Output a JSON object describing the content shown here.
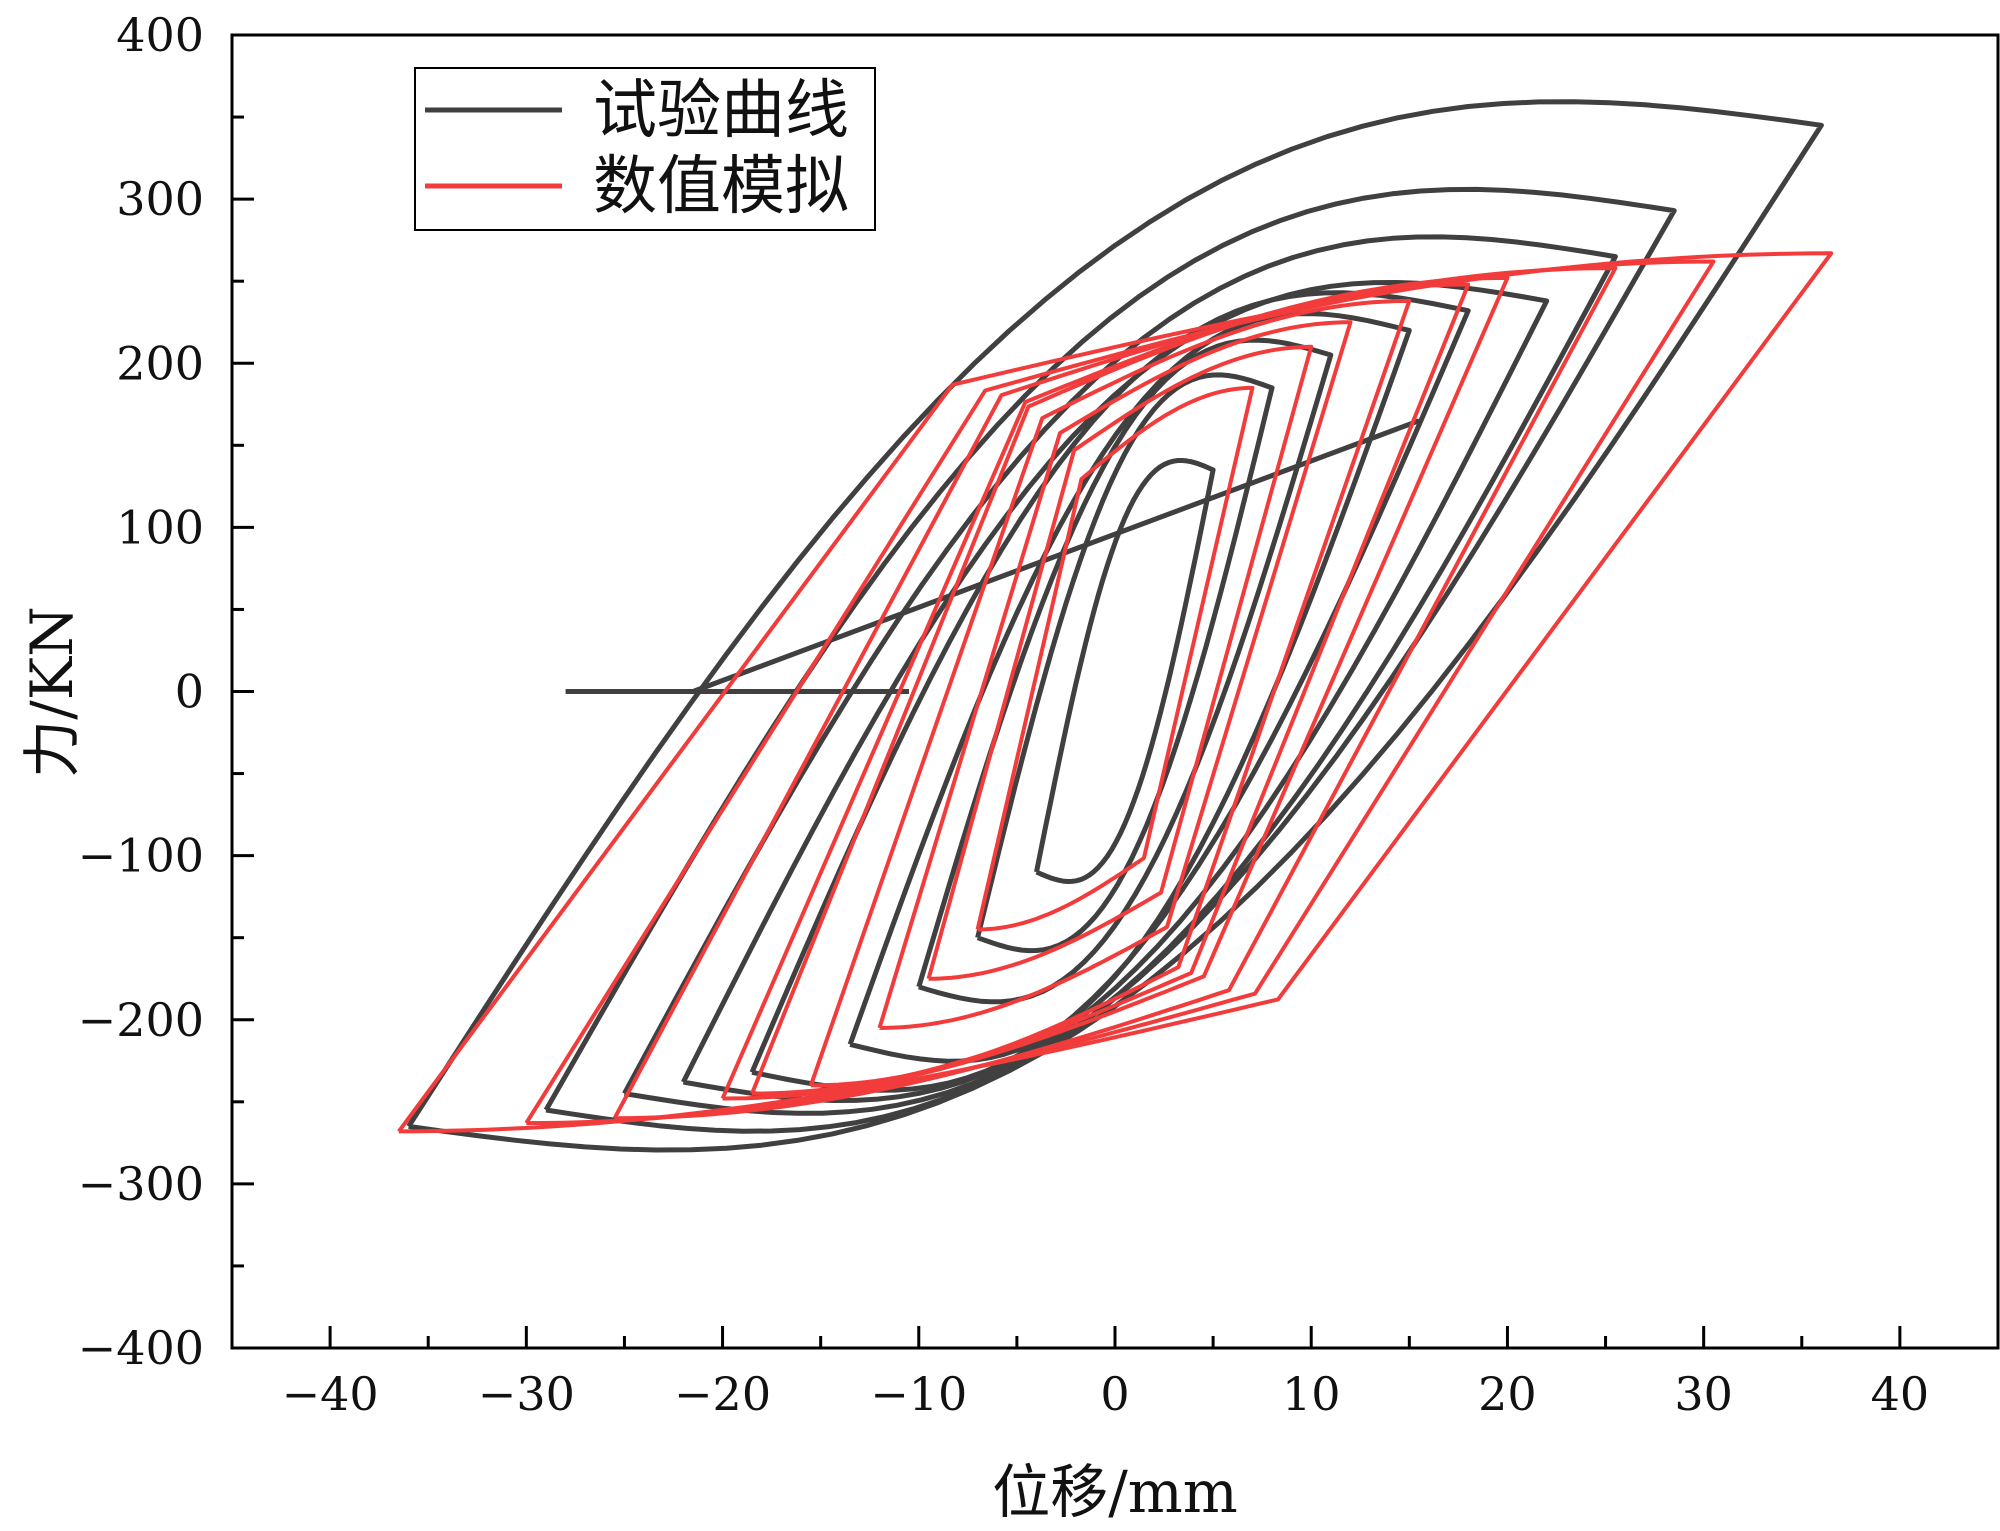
{
  "chart_data": {
    "type": "line",
    "title": "",
    "xlabel": "位移/mm",
    "ylabel": "力/KN",
    "xlim": [
      -45,
      45
    ],
    "ylim": [
      -400,
      400
    ],
    "xticks": [
      -40,
      -30,
      -20,
      -10,
      0,
      10,
      20,
      30,
      40
    ],
    "xtick_labels": [
      "−40",
      "−30",
      "−20",
      "−10",
      "0",
      "10",
      "20",
      "30",
      "40"
    ],
    "yticks": [
      -400,
      -300,
      -200,
      -100,
      0,
      100,
      200,
      300,
      400
    ],
    "ytick_labels": [
      "−400",
      "−300",
      "−200",
      "−100",
      "0",
      "100",
      "200",
      "300",
      "400"
    ],
    "legend": {
      "position": "top-left",
      "entries": [
        "试验曲线",
        "数值模拟"
      ]
    },
    "colors": {
      "test": "#404040",
      "sim": "#f23c3c",
      "axis": "#000000"
    },
    "series": [
      {
        "name": "试验曲线",
        "color": "#404040",
        "loops": [
          {
            "type": "line",
            "points": [
              [
                -28,
                0
              ],
              [
                -10.5,
                0
              ]
            ]
          },
          {
            "type": "line",
            "points": [
              [
                -21.5,
                0
              ],
              [
                15.5,
                165
              ]
            ]
          },
          {
            "type": "loop",
            "d_pos": 5,
            "f_pos": 135,
            "d_neg": -4,
            "f_neg": -110
          },
          {
            "type": "loop",
            "d_pos": 8,
            "f_pos": 185,
            "d_neg": -7,
            "f_neg": -150
          },
          {
            "type": "loop",
            "d_pos": 11,
            "f_pos": 205,
            "d_neg": -10,
            "f_neg": -180
          },
          {
            "type": "loop",
            "d_pos": 15,
            "f_pos": 220,
            "d_neg": -13.5,
            "f_neg": -215
          },
          {
            "type": "loop",
            "d_pos": 18,
            "f_pos": 232,
            "d_neg": -18.5,
            "f_neg": -232
          },
          {
            "type": "loop",
            "d_pos": 22,
            "f_pos": 238,
            "d_neg": -22,
            "f_neg": -238
          },
          {
            "type": "loop",
            "d_pos": 25.5,
            "f_pos": 265,
            "d_neg": -25,
            "f_neg": -245
          },
          {
            "type": "loop",
            "d_pos": 28.5,
            "f_pos": 293,
            "d_neg": -29,
            "f_neg": -255
          },
          {
            "type": "loop",
            "d_pos": 36,
            "f_pos": 345,
            "d_neg": -36,
            "f_neg": -265
          }
        ]
      },
      {
        "name": "数值模拟",
        "color": "#f23c3c",
        "loops": [
          {
            "type": "loop",
            "d_pos": 7,
            "f_pos": 185,
            "d_neg": -7,
            "f_neg": -145
          },
          {
            "type": "loop",
            "d_pos": 10,
            "f_pos": 210,
            "d_neg": -9.5,
            "f_neg": -175
          },
          {
            "type": "loop",
            "d_pos": 12,
            "f_pos": 225,
            "d_neg": -12,
            "f_neg": -205
          },
          {
            "type": "loop",
            "d_pos": 15,
            "f_pos": 238,
            "d_neg": -15.5,
            "f_neg": -240
          },
          {
            "type": "loop",
            "d_pos": 18,
            "f_pos": 248,
            "d_neg": -18.5,
            "f_neg": -245
          },
          {
            "type": "loop",
            "d_pos": 20,
            "f_pos": 252,
            "d_neg": -20,
            "f_neg": -248
          },
          {
            "type": "loop",
            "d_pos": 25.5,
            "f_pos": 258,
            "d_neg": -25.5,
            "f_neg": -260
          },
          {
            "type": "loop",
            "d_pos": 30.5,
            "f_pos": 262,
            "d_neg": -30,
            "f_neg": -263
          },
          {
            "type": "loop",
            "d_pos": 36.5,
            "f_pos": 267,
            "d_neg": -36.5,
            "f_neg": -268
          }
        ]
      }
    ]
  }
}
